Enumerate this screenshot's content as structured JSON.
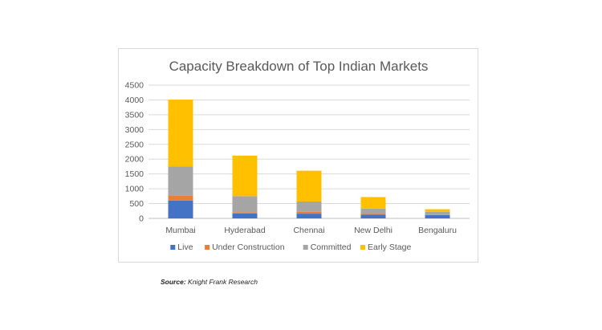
{
  "chart_data": {
    "type": "bar",
    "stacked": true,
    "title": "Capacity Breakdown of Top Indian Markets",
    "categories": [
      "Mumbai",
      "Hyderabad",
      "Chennai",
      "New Delhi",
      "Bengaluru"
    ],
    "series": [
      {
        "name": "Live",
        "color": "#4472c4",
        "values": [
          600,
          170,
          160,
          130,
          110
        ]
      },
      {
        "name": "Under Construction",
        "color": "#ed7d31",
        "values": [
          170,
          40,
          60,
          20,
          20
        ]
      },
      {
        "name": "Committed",
        "color": "#a5a5a5",
        "values": [
          980,
          540,
          350,
          180,
          90
        ]
      },
      {
        "name": "Early Stage",
        "color": "#ffc000",
        "values": [
          2260,
          1370,
          1040,
          390,
          90
        ]
      }
    ],
    "ylim": [
      0,
      4500
    ],
    "yticks": [
      "0",
      "500",
      "1000",
      "1500",
      "2000",
      "2500",
      "3000",
      "3500",
      "4000",
      "4500"
    ],
    "grid": true,
    "legend_position": "bottom"
  },
  "source": {
    "label": "Source:",
    "text": "Knight Frank Research"
  }
}
